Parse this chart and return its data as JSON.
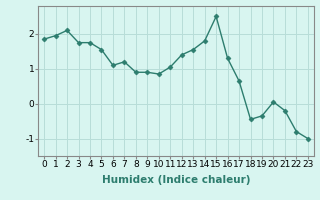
{
  "x": [
    0,
    1,
    2,
    3,
    4,
    5,
    6,
    7,
    8,
    9,
    10,
    11,
    12,
    13,
    14,
    15,
    16,
    17,
    18,
    19,
    20,
    21,
    22,
    23
  ],
  "y": [
    1.85,
    1.95,
    2.1,
    1.75,
    1.75,
    1.55,
    1.1,
    1.2,
    0.9,
    0.9,
    0.85,
    1.05,
    1.4,
    1.55,
    1.8,
    2.5,
    1.3,
    0.65,
    -0.45,
    -0.35,
    0.05,
    -0.2,
    -0.8,
    -1.0
  ],
  "line_color": "#2d7d6e",
  "marker": "D",
  "marker_size": 2.5,
  "bg_color": "#d8f5f0",
  "grid_color": "#b8ddd8",
  "xlabel": "Humidex (Indice chaleur)",
  "ylim": [
    -1.5,
    2.8
  ],
  "xlim": [
    -0.5,
    23.5
  ],
  "yticks": [
    -1,
    0,
    1,
    2
  ],
  "xticks": [
    0,
    1,
    2,
    3,
    4,
    5,
    6,
    7,
    8,
    9,
    10,
    11,
    12,
    13,
    14,
    15,
    16,
    17,
    18,
    19,
    20,
    21,
    22,
    23
  ],
  "tick_fontsize": 6.5,
  "xlabel_fontsize": 7.5,
  "spine_color": "#888888",
  "line_width": 1.0
}
